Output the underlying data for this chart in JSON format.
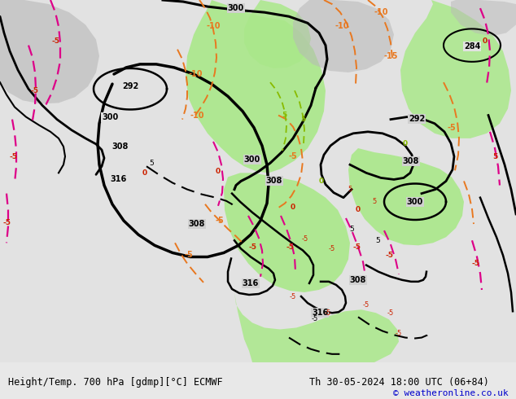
{
  "title_left": "Height/Temp. 700 hPa [gdmp][°C] ECMWF",
  "title_right": "Th 30-05-2024 18:00 UTC (06+84)",
  "copyright": "© weatheronline.co.uk",
  "fig_width": 6.34,
  "fig_height": 4.9,
  "dpi": 100,
  "bg_color": "#e8e8e8",
  "map_bg": "#e8e8e8",
  "bottom_bar_color": "#d8d8d8",
  "text_color": "#000000",
  "copyright_color": "#0000cc",
  "label_fontsize": 8.5,
  "copyright_fontsize": 8,
  "green_fill": "#aae88a",
  "gray_fill": "#b8b8b8",
  "light_gray": "#d0d0d0"
}
